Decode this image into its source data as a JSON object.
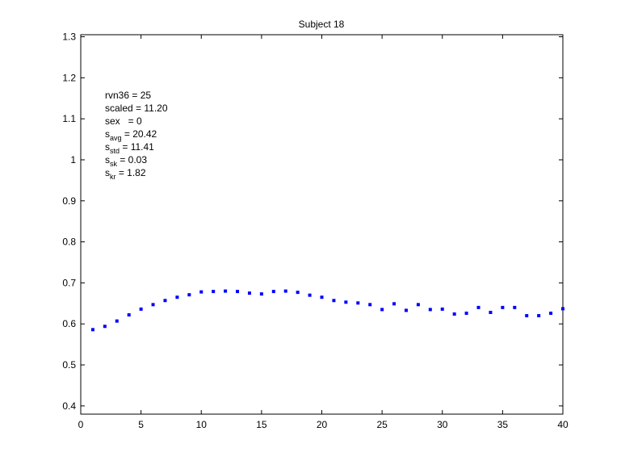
{
  "chart_data": {
    "type": "scatter",
    "title": "Subject 18",
    "xlabel": "",
    "ylabel": "",
    "xlim": [
      0,
      40
    ],
    "ylim": [
      0.38,
      1.305
    ],
    "xticks": [
      0,
      5,
      10,
      15,
      20,
      25,
      30,
      35,
      40
    ],
    "xtick_labels": [
      "0",
      "5",
      "10",
      "15",
      "20",
      "25",
      "30",
      "35",
      "40"
    ],
    "yticks": [
      0.4,
      0.5,
      0.6,
      0.7,
      0.8,
      0.9,
      1.0,
      1.1,
      1.2,
      1.3
    ],
    "ytick_labels": [
      "0.4",
      "0.5",
      "0.6",
      "0.7",
      "0.8",
      "0.9",
      "1",
      "1.1",
      "1.2",
      "1.3"
    ],
    "grid": false,
    "marker_color": "#0000ff",
    "series": [
      {
        "x": [
          1,
          2,
          3,
          4,
          5,
          6,
          7,
          8,
          9,
          10,
          11,
          12,
          13,
          14,
          15,
          16,
          17,
          18,
          19,
          20,
          21,
          22,
          23,
          24,
          25,
          26,
          27,
          28,
          29,
          30,
          31,
          32,
          33,
          34,
          35,
          36,
          37,
          38,
          39,
          40
        ],
        "values": [
          0.586,
          0.594,
          0.607,
          0.622,
          0.636,
          0.647,
          0.657,
          0.665,
          0.671,
          0.678,
          0.679,
          0.68,
          0.679,
          0.675,
          0.673,
          0.679,
          0.68,
          0.677,
          0.67,
          0.665,
          0.657,
          0.653,
          0.651,
          0.647,
          0.635,
          0.649,
          0.633,
          0.647,
          0.635,
          0.636,
          0.624,
          0.626,
          0.64,
          0.628,
          0.64,
          0.64,
          0.62,
          0.62,
          0.626,
          0.637
        ]
      }
    ],
    "annotations": [
      {
        "main": "rvn36 = 25",
        "sub": "",
        "rest": ""
      },
      {
        "main": "scaled = 11.20",
        "sub": "",
        "rest": ""
      },
      {
        "main": "sex   = 0",
        "sub": "",
        "rest": ""
      },
      {
        "main": "s",
        "sub": "avg",
        "rest": " = 20.42"
      },
      {
        "main": "s",
        "sub": "std",
        "rest": " = 11.41"
      },
      {
        "main": "s",
        "sub": "sk",
        "rest": " = 0.03"
      },
      {
        "main": "s",
        "sub": "kr",
        "rest": " = 1.82"
      }
    ]
  }
}
